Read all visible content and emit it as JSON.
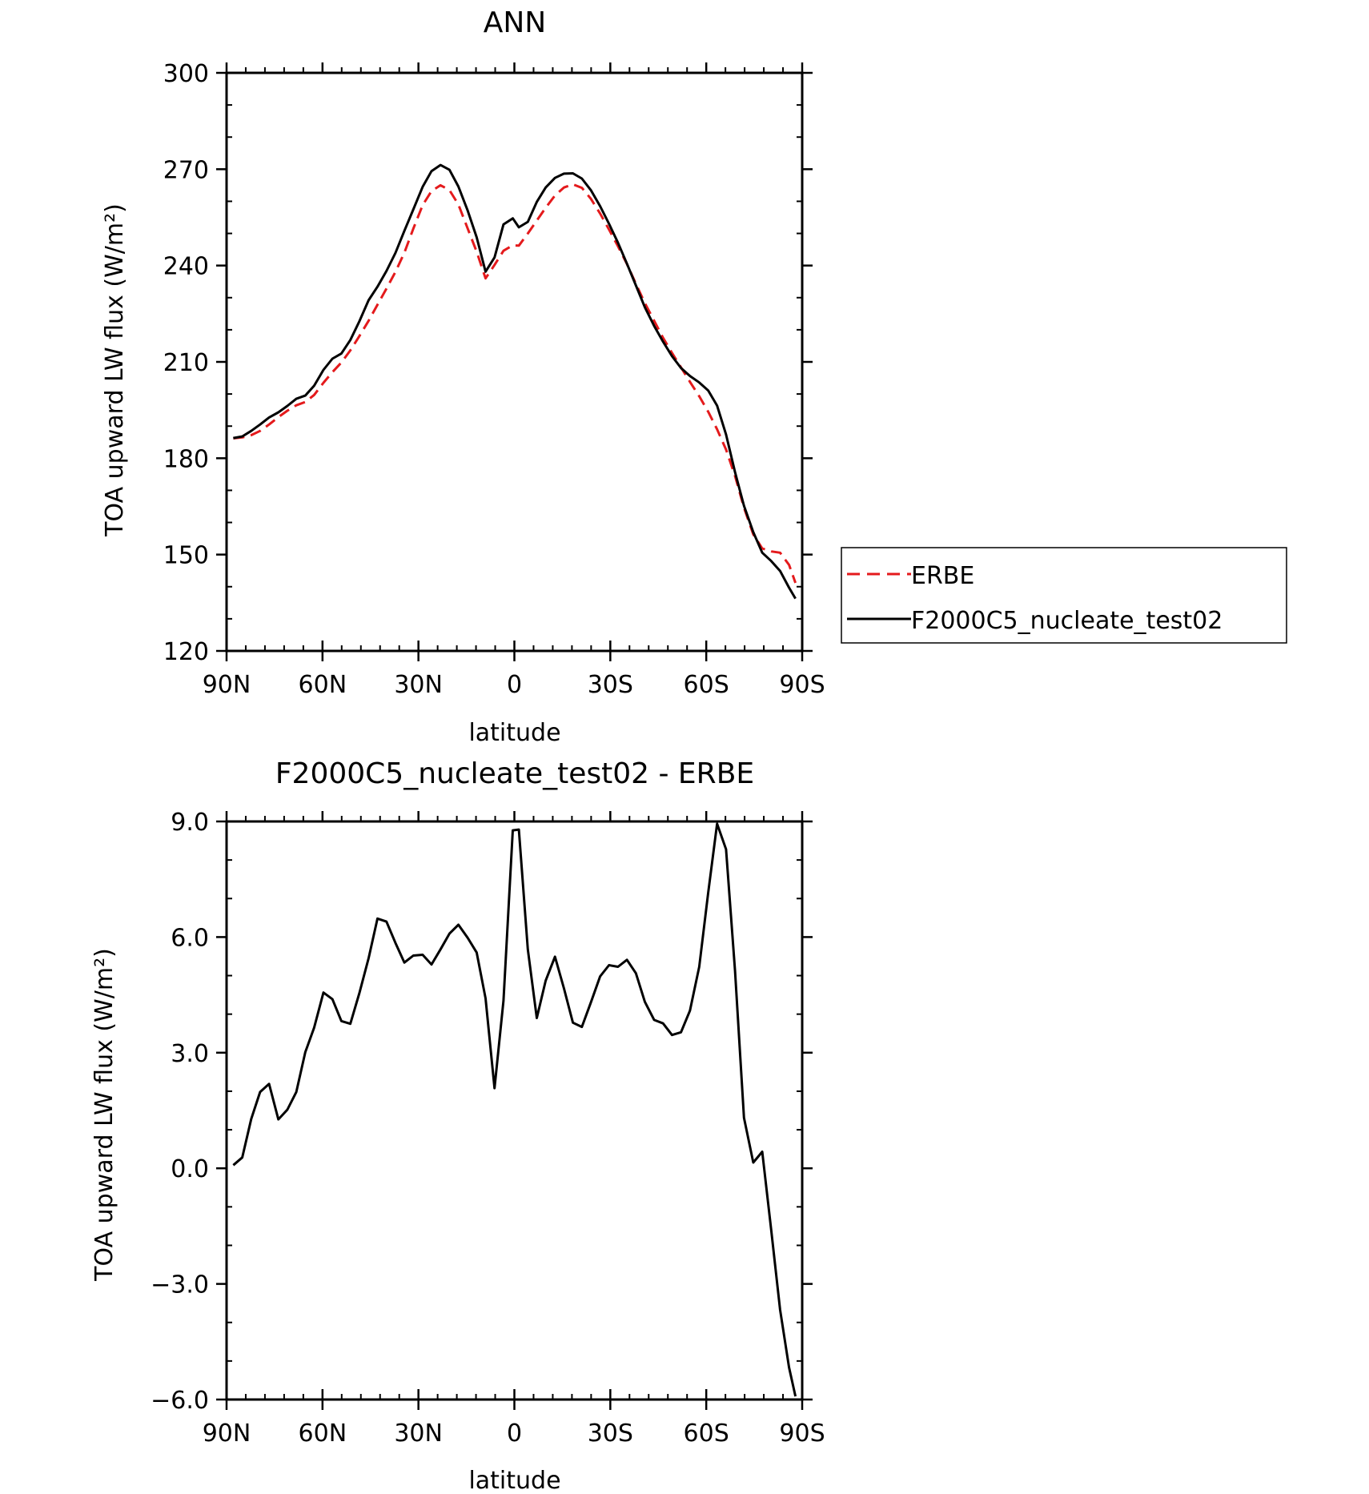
{
  "colors": {
    "erbe": "#e41a1c",
    "model": "#000000",
    "axis": "#000000"
  },
  "chart_data": [
    {
      "type": "line",
      "title": "ANN",
      "xlabel": "latitude",
      "ylabel": "TOA upward LW flux (W/m²)",
      "xlim": [
        -90,
        90
      ],
      "ylim": [
        120,
        300
      ],
      "xticks": [
        "90N",
        "60N",
        "30N",
        "0",
        "30S",
        "60S",
        "90S"
      ],
      "yticks": [
        "120",
        "150",
        "180",
        "210",
        "240",
        "270",
        "300"
      ],
      "x_direction": "north-to-south",
      "legend": {
        "placement": "right",
        "entries": [
          "ERBE",
          "F2000C5_nucleate_test02"
        ]
      },
      "x": [
        -87.9,
        -85.1,
        -82.3,
        -79.5,
        -76.7,
        -73.8,
        -71.0,
        -68.2,
        -65.4,
        -62.6,
        -59.7,
        -56.9,
        -54.1,
        -51.3,
        -48.5,
        -45.6,
        -42.8,
        -40.0,
        -37.2,
        -34.4,
        -31.6,
        -28.7,
        -25.9,
        -23.1,
        -20.3,
        -17.5,
        -14.6,
        -11.8,
        -9.0,
        -6.2,
        -3.4,
        -0.5,
        1.4,
        4.2,
        7.0,
        9.8,
        12.7,
        15.5,
        18.3,
        21.1,
        23.9,
        26.8,
        29.6,
        32.4,
        35.2,
        38.0,
        40.8,
        43.7,
        46.5,
        49.3,
        52.1,
        54.9,
        57.8,
        60.6,
        63.4,
        66.2,
        69.0,
        71.8,
        74.7,
        77.5,
        80.3,
        83.1,
        85.9,
        87.9
      ],
      "series": [
        {
          "name": "ERBE",
          "style": "dashed",
          "color": "#e41a1c",
          "values": [
            186.2,
            186.5,
            187.2,
            188.5,
            190.5,
            192.8,
            194.8,
            196.5,
            197.5,
            199.7,
            203.5,
            206.8,
            209.8,
            213.6,
            218.0,
            222.8,
            227.8,
            232.8,
            238.0,
            244.0,
            251.5,
            258.8,
            263.2,
            265.0,
            263.5,
            259.0,
            251.5,
            244.3,
            236.0,
            240.2,
            244.6,
            246.3,
            246.2,
            250.0,
            254.0,
            258.0,
            261.8,
            264.3,
            265.3,
            264.2,
            260.8,
            256.2,
            251.2,
            246.0,
            240.5,
            234.3,
            228.3,
            222.8,
            217.5,
            212.8,
            208.3,
            203.8,
            199.3,
            194.5,
            189.0,
            182.7,
            174.5,
            164.6,
            156.3,
            151.9,
            151.0,
            150.6,
            146.8,
            141.2
          ]
        },
        {
          "name": "F2000C5_nucleate_test02",
          "style": "solid",
          "color": "#000000",
          "values": [
            186.3,
            186.8,
            188.5,
            190.5,
            192.7,
            194.3,
            196.3,
            198.5,
            199.5,
            202.6,
            207.5,
            211.0,
            212.6,
            216.8,
            222.6,
            229.2,
            233.4,
            238.3,
            243.9,
            250.8,
            257.5,
            264.5,
            269.4,
            271.3,
            269.8,
            264.6,
            257.1,
            248.8,
            238.1,
            242.5,
            252.8,
            254.7,
            251.9,
            253.6,
            259.8,
            264.3,
            267.3,
            268.6,
            268.7,
            267.1,
            263.5,
            258.5,
            253.0,
            247.1,
            240.6,
            233.8,
            227.0,
            221.2,
            216.3,
            211.8,
            208.1,
            205.6,
            203.6,
            201.1,
            196.4,
            187.4,
            175.7,
            165.2,
            157.0,
            150.6,
            148.0,
            144.9,
            139.7,
            136.3
          ]
        }
      ]
    },
    {
      "type": "line",
      "title": "F2000C5_nucleate_test02 - ERBE",
      "xlabel": "latitude",
      "ylabel": "TOA upward LW flux (W/m²)",
      "xlim": [
        -90,
        90
      ],
      "ylim": [
        -6,
        9
      ],
      "xticks": [
        "90N",
        "60N",
        "30N",
        "0",
        "30S",
        "60S",
        "90S"
      ],
      "yticks": [
        "−6.0",
        "−3.0",
        "0.0",
        "3.0",
        "6.0",
        "9.0"
      ],
      "x_direction": "north-to-south",
      "series": [
        {
          "style": "solid",
          "color": "#000000",
          "values": [
            0.08,
            0.28,
            1.28,
            1.98,
            2.19,
            1.27,
            1.52,
            1.98,
            3.01,
            3.65,
            4.56,
            4.39,
            3.82,
            3.75,
            4.54,
            5.45,
            6.48,
            6.4,
            5.85,
            5.34,
            5.52,
            5.54,
            5.29,
            5.68,
            6.09,
            6.32,
            5.98,
            5.6,
            4.41,
            2.08,
            4.35,
            8.77,
            8.79,
            5.68,
            3.9,
            4.87,
            5.49,
            4.67,
            3.78,
            3.67,
            4.3,
            4.98,
            5.27,
            5.23,
            5.41,
            5.06,
            4.32,
            3.85,
            3.76,
            3.46,
            3.53,
            4.09,
            5.23,
            7.15,
            8.94,
            8.28,
            5.13,
            1.31,
            0.15,
            0.43,
            -1.6,
            -3.67,
            -5.17,
            -5.92
          ]
        }
      ]
    }
  ]
}
